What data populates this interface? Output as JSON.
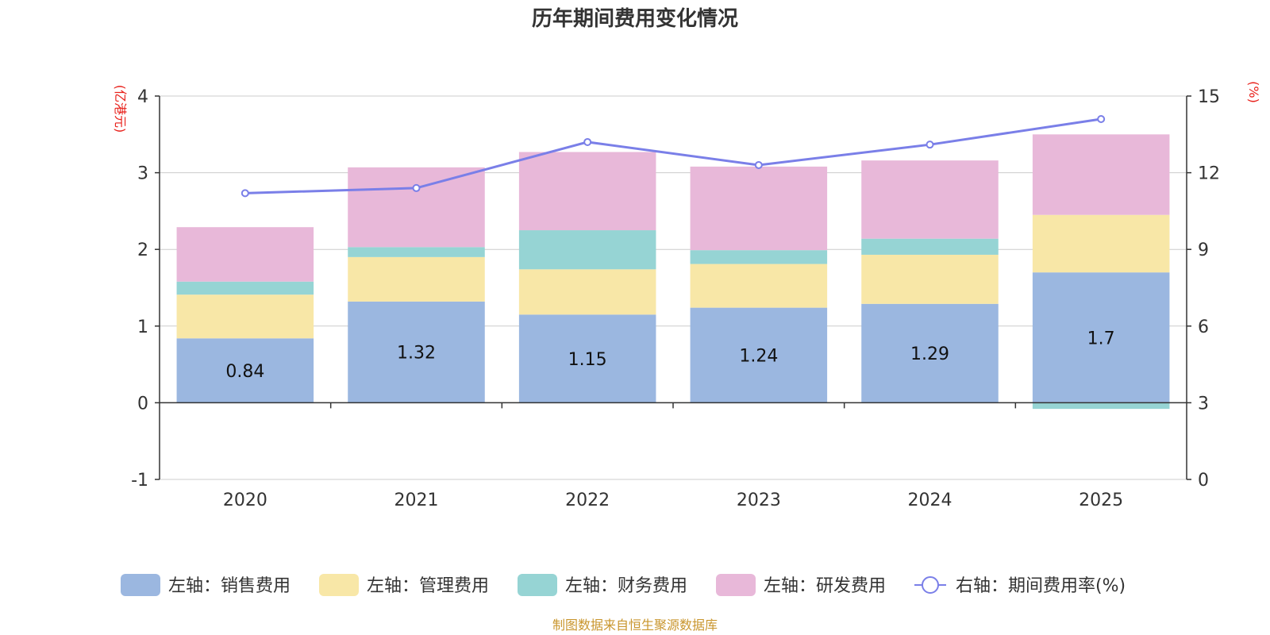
{
  "chart_data": {
    "type": "bar",
    "title": "历年期间费用变化情况",
    "categories": [
      "2020",
      "2021",
      "2022",
      "2023",
      "2024",
      "2025"
    ],
    "left_axis": {
      "unit": "(亿港元)",
      "ylim": [
        -1,
        4
      ],
      "ticks": [
        "-1",
        "0",
        "1",
        "2",
        "3",
        "4"
      ]
    },
    "right_axis": {
      "unit": "(%)",
      "ylim": [
        0,
        15
      ],
      "ticks": [
        "0",
        "3",
        "6",
        "9",
        "12",
        "15"
      ]
    },
    "series": [
      {
        "name": "左轴：销售费用",
        "type": "bar",
        "axis": "left",
        "color": "#9bb7e0",
        "values": [
          0.84,
          1.32,
          1.15,
          1.24,
          1.29,
          1.7
        ],
        "labels": [
          "0.84",
          "1.32",
          "1.15",
          "1.24",
          "1.29",
          "1.7"
        ]
      },
      {
        "name": "左轴：管理费用",
        "type": "bar",
        "axis": "left",
        "color": "#f8e7a7",
        "values": [
          0.57,
          0.58,
          0.59,
          0.57,
          0.64,
          0.75
        ]
      },
      {
        "name": "左轴：财务费用",
        "type": "bar",
        "axis": "left",
        "color": "#96d4d4",
        "values": [
          0.17,
          0.13,
          0.51,
          0.18,
          0.21,
          -0.08
        ]
      },
      {
        "name": "左轴：研发费用",
        "type": "bar",
        "axis": "left",
        "color": "#e8b8d9",
        "values": [
          0.71,
          1.04,
          1.02,
          1.09,
          1.02,
          1.05
        ]
      },
      {
        "name": "右轴：期间费用率(%)",
        "type": "line",
        "axis": "right",
        "color": "#7a7fe8",
        "values": [
          11.2,
          11.4,
          13.2,
          12.3,
          13.1,
          14.1
        ]
      }
    ],
    "grid": true,
    "legend": "bottom"
  },
  "source": "制图数据来自恒生聚源数据库"
}
